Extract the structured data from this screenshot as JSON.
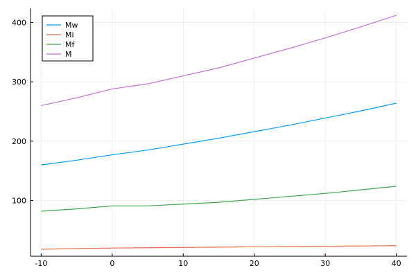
{
  "chart_data": {
    "type": "line",
    "x": [
      -10,
      -5,
      0,
      5,
      10,
      15,
      20,
      25,
      30,
      35,
      40
    ],
    "series": [
      {
        "name": "Mw",
        "color": "#009af9",
        "values": [
          160,
          168,
          177,
          185,
          195,
          205,
          216,
          227,
          239,
          251,
          264
        ]
      },
      {
        "name": "Mi",
        "color": "#e26f46",
        "values": [
          18,
          19,
          20,
          20.5,
          21,
          21.5,
          22,
          22.5,
          23,
          23.5,
          24
        ]
      },
      {
        "name": "Mf",
        "color": "#3ea44e",
        "values": [
          82,
          86,
          91,
          91,
          94,
          97,
          102,
          107,
          112,
          118,
          124
        ]
      },
      {
        "name": "M",
        "color": "#c271d2",
        "values": [
          260,
          273,
          288,
          296.5,
          310,
          323.5,
          340,
          356.5,
          374,
          392.5,
          412
        ]
      }
    ],
    "xlim": [
      -11.5,
      41.5
    ],
    "xticks": [
      -10,
      0,
      10,
      20,
      30,
      40
    ],
    "ylim": [
      6.2,
      423.8
    ],
    "yticks": [
      100,
      200,
      300,
      400
    ],
    "grid": true,
    "legend": "top-left"
  }
}
